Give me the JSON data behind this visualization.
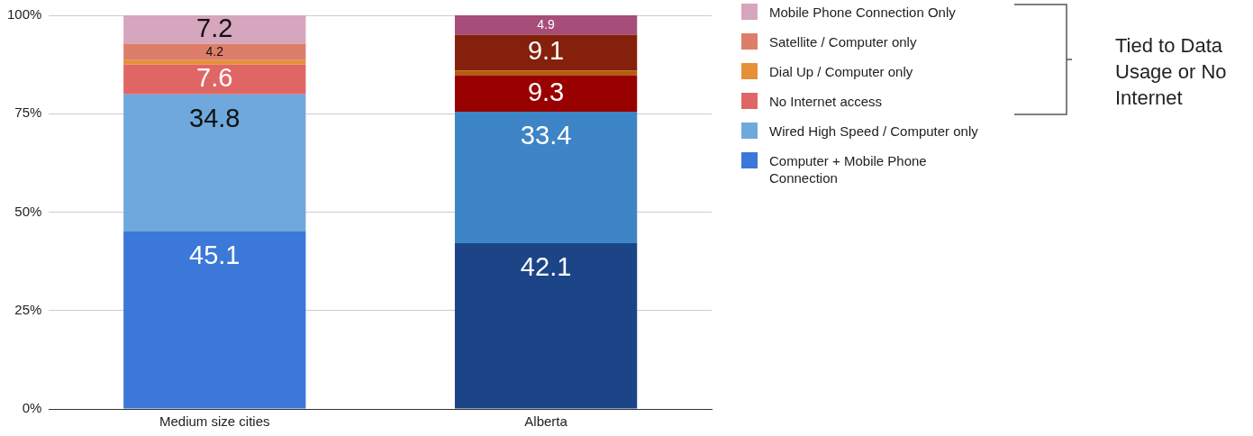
{
  "chart_data": {
    "type": "bar",
    "stacked": true,
    "categories": [
      "Medium size cities",
      "Alberta"
    ],
    "series": [
      {
        "name": "Computer + Mobile Phone Connection",
        "color": "#3c78d8",
        "colors": [
          "#3c78d8",
          "#1c4587"
        ],
        "values": [
          45.1,
          42.1
        ],
        "value_labels": [
          "45.1",
          "42.1"
        ]
      },
      {
        "name": "Wired High Speed / Computer only",
        "color": "#6fa8dc",
        "colors": [
          "#6fa8dc",
          "#3d85c6"
        ],
        "values": [
          34.8,
          33.4
        ],
        "value_labels": [
          "34.8",
          "33.4"
        ]
      },
      {
        "name": "No Internet access",
        "color": "#e06666",
        "colors": [
          "#e06666",
          "#990000"
        ],
        "values": [
          7.6,
          9.3
        ],
        "value_labels": [
          "7.6",
          "9.3"
        ]
      },
      {
        "name": "Dial Up / Computer only",
        "color": "#e69138",
        "colors": [
          "#e69138",
          "#b45f06"
        ],
        "values": [
          1.1,
          1.2
        ],
        "value_labels": [
          null,
          null
        ]
      },
      {
        "name": "Satellite / Computer only",
        "color": "#dd7e6b",
        "colors": [
          "#dd7e6b",
          "#85200c"
        ],
        "values": [
          4.2,
          9.1
        ],
        "value_labels": [
          "4.2",
          "9.1"
        ]
      },
      {
        "name": "Mobile Phone Connection Only",
        "color": "#d5a6bd",
        "colors": [
          "#d5a6bd",
          "#a64d79"
        ],
        "values": [
          7.2,
          4.9
        ],
        "value_labels": [
          "7.2",
          "4.9"
        ]
      }
    ],
    "ylim": [
      0,
      100
    ],
    "yticks": [
      {
        "value": 0,
        "label": "0%"
      },
      {
        "value": 25,
        "label": "25%"
      },
      {
        "value": 50,
        "label": "50%"
      },
      {
        "value": 75,
        "label": "75%"
      },
      {
        "value": 100,
        "label": "100%"
      }
    ],
    "grid": "y",
    "legend": "right",
    "annotations": [
      "Tied to Data Usage or  No Internet"
    ]
  }
}
